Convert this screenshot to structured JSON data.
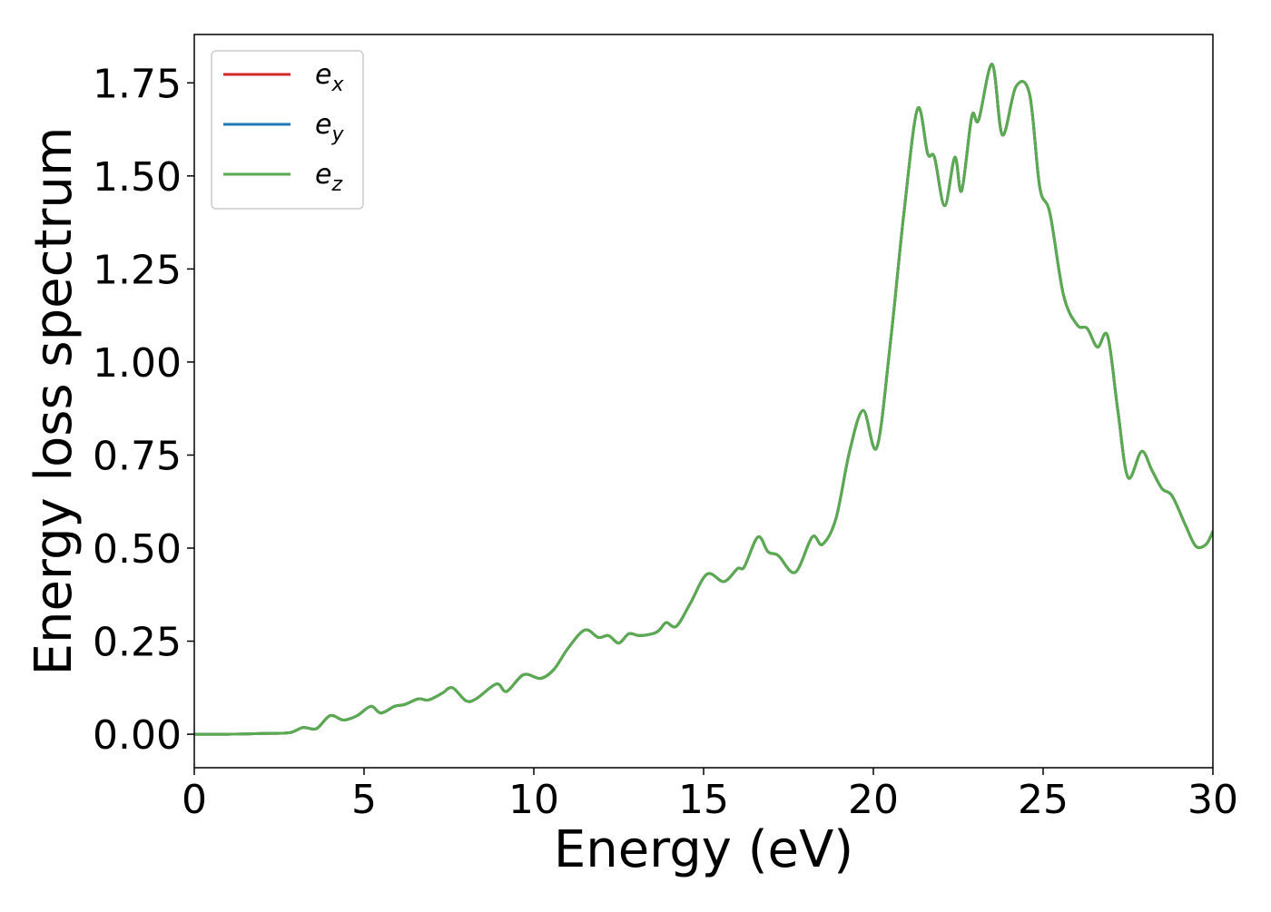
{
  "chart_data": {
    "type": "line",
    "title": "",
    "xlabel": "Energy (eV)",
    "ylabel": "Energy loss spectrum",
    "xlim": [
      0,
      30
    ],
    "ylim": [
      -0.09,
      1.88
    ],
    "xticks": [
      0,
      5,
      10,
      15,
      20,
      25,
      30
    ],
    "xtick_labels": [
      "0",
      "5",
      "10",
      "15",
      "20",
      "25",
      "30"
    ],
    "yticks": [
      0.0,
      0.25,
      0.5,
      0.75,
      1.0,
      1.25,
      1.5,
      1.75
    ],
    "ytick_labels": [
      "0.00",
      "0.25",
      "0.50",
      "0.75",
      "1.00",
      "1.25",
      "1.50",
      "1.75"
    ],
    "grid": false,
    "legend_position": "top-left",
    "series": [
      {
        "name": "e_x",
        "legend_base": "e",
        "legend_sub": "x",
        "color": "#d62728",
        "shares_data_with": "e_z"
      },
      {
        "name": "e_y",
        "legend_base": "e",
        "legend_sub": "y",
        "color": "#1f77b4",
        "shares_data_with": "e_z"
      },
      {
        "name": "e_z",
        "legend_base": "e",
        "legend_sub": "z",
        "color": "#5aab4f"
      }
    ],
    "x": [
      0,
      1,
      2,
      2.8,
      3.2,
      3.6,
      4.0,
      4.4,
      4.8,
      5.2,
      5.5,
      5.9,
      6.2,
      6.6,
      6.9,
      7.3,
      7.6,
      8.0,
      8.3,
      8.9,
      9.2,
      9.7,
      10.2,
      10.6,
      11.0,
      11.5,
      11.9,
      12.2,
      12.5,
      12.8,
      13.1,
      13.5,
      13.7,
      13.9,
      14.2,
      14.6,
      15.1,
      15.6,
      16.0,
      16.2,
      16.6,
      16.9,
      17.2,
      17.7,
      18.2,
      18.5,
      18.9,
      19.3,
      19.7,
      20.1,
      20.5,
      20.9,
      21.3,
      21.6,
      21.8,
      22.1,
      22.4,
      22.6,
      22.9,
      23.1,
      23.5,
      23.8,
      24.2,
      24.6,
      24.9,
      25.2,
      25.6,
      26.0,
      26.3,
      26.6,
      26.9,
      27.2,
      27.5,
      27.9,
      28.2,
      28.5,
      28.8,
      29.2,
      29.5,
      29.8,
      30.0
    ],
    "values": [
      0.0,
      0.0,
      0.002,
      0.004,
      0.018,
      0.015,
      0.05,
      0.038,
      0.05,
      0.075,
      0.057,
      0.075,
      0.08,
      0.095,
      0.092,
      0.11,
      0.125,
      0.09,
      0.095,
      0.135,
      0.115,
      0.16,
      0.15,
      0.175,
      0.23,
      0.28,
      0.26,
      0.265,
      0.245,
      0.27,
      0.265,
      0.27,
      0.28,
      0.3,
      0.29,
      0.35,
      0.43,
      0.41,
      0.445,
      0.45,
      0.53,
      0.49,
      0.48,
      0.435,
      0.53,
      0.51,
      0.58,
      0.76,
      0.87,
      0.77,
      1.05,
      1.4,
      1.68,
      1.56,
      1.55,
      1.42,
      1.55,
      1.46,
      1.66,
      1.65,
      1.8,
      1.61,
      1.74,
      1.72,
      1.47,
      1.4,
      1.18,
      1.1,
      1.09,
      1.04,
      1.07,
      0.87,
      0.69,
      0.76,
      0.71,
      0.66,
      0.64,
      0.56,
      0.505,
      0.51,
      0.545
    ]
  }
}
